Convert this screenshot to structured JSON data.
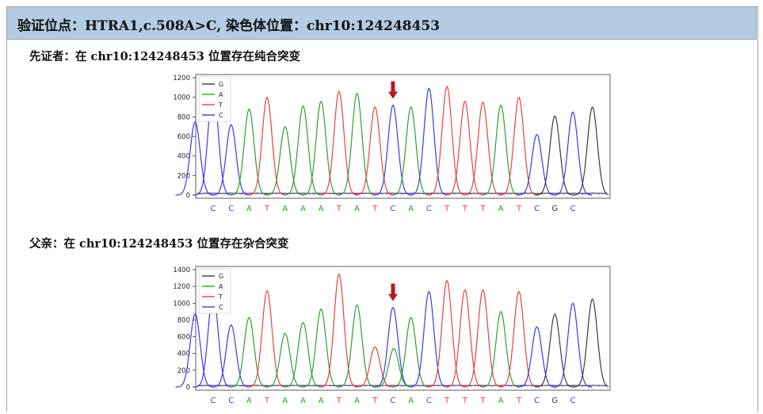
{
  "header": {
    "title": "验证位点：HTRA1,c.508A>C, 染色体位置：chr10:124248453"
  },
  "sections": [
    {
      "title": "先证者：在 chr10:124248453 位置存在纯合突变"
    },
    {
      "title": "父亲：在 chr10:124248453 位置存在杂合突变"
    }
  ],
  "colors": {
    "G": "#3a3a3a",
    "A": "#2ca02c",
    "T": "#e8413c",
    "C": "#3a3ae8",
    "arrow": "#b01e23",
    "header_bg": "#b3cbe3"
  },
  "chart_data": [
    {
      "type": "line",
      "title": "",
      "xlabel": "",
      "ylabel": "",
      "ylim": [
        0,
        1200
      ],
      "yticks": [
        0,
        200,
        400,
        600,
        800,
        1000,
        1200
      ],
      "legend": {
        "position": "top-left",
        "entries": [
          "G",
          "A",
          "T",
          "C"
        ]
      },
      "bases": [
        "C",
        "C",
        "A",
        "T",
        "A",
        "A",
        "A",
        "T",
        "A",
        "T",
        "C",
        "A",
        "C",
        "T",
        "T",
        "T",
        "A",
        "T",
        "C",
        "G",
        "C"
      ],
      "peaks": [
        1110,
        720,
        880,
        1000,
        700,
        910,
        960,
        1060,
        1040,
        900,
        920,
        900,
        1090,
        1110,
        960,
        950,
        920,
        1000,
        620,
        810,
        850
      ],
      "mutation_index": 10,
      "secondary_peaks": []
    },
    {
      "type": "line",
      "title": "",
      "xlabel": "",
      "ylabel": "",
      "ylim": [
        0,
        1400
      ],
      "yticks": [
        0,
        200,
        400,
        600,
        800,
        1000,
        1200,
        1400
      ],
      "legend": {
        "position": "top-left",
        "entries": [
          "G",
          "A",
          "T",
          "C"
        ]
      },
      "bases": [
        "C",
        "C",
        "A",
        "T",
        "A",
        "A",
        "A",
        "T",
        "A",
        "T",
        "C",
        "A",
        "C",
        "T",
        "T",
        "T",
        "A",
        "T",
        "C",
        "G",
        "C"
      ],
      "peaks": [
        1120,
        740,
        830,
        1150,
        640,
        770,
        930,
        1350,
        980,
        480,
        950,
        830,
        1140,
        1270,
        1160,
        1160,
        900,
        1140,
        720,
        870,
        1000
      ],
      "mutation_index": 10,
      "secondary_peaks": [
        {
          "index": 10,
          "base": "A",
          "value": 460
        }
      ]
    }
  ]
}
